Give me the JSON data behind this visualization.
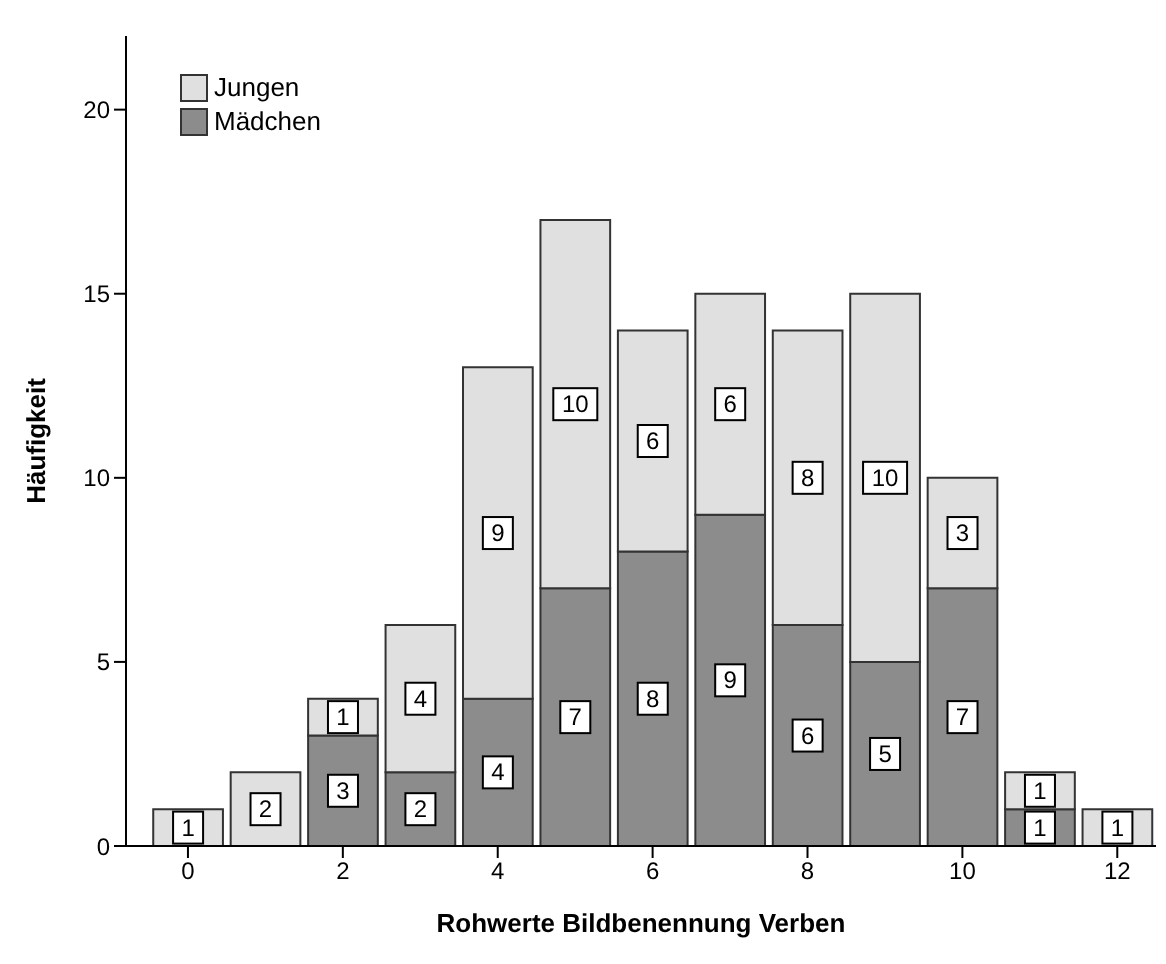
{
  "chart_data": {
    "type": "bar",
    "stacked": true,
    "xlabel": "Rohwerte Bildbenennung Verben",
    "ylabel": "Häufigkeit",
    "x": [
      0,
      1,
      2,
      3,
      4,
      5,
      6,
      7,
      8,
      9,
      10,
      11,
      12
    ],
    "series": [
      {
        "name": "Mädchen",
        "color": "#8c8c8c",
        "values": [
          0,
          0,
          3,
          2,
          4,
          7,
          8,
          9,
          6,
          5,
          7,
          1,
          0
        ],
        "value_labels": [
          null,
          null,
          "3",
          "2",
          "4",
          "7",
          "8",
          "9",
          "6",
          "5",
          "7",
          "1",
          null
        ]
      },
      {
        "name": "Jungen",
        "color": "#e0e0e0",
        "values": [
          1,
          2,
          1,
          4,
          9,
          10,
          6,
          6,
          8,
          10,
          3,
          1,
          1
        ],
        "value_labels": [
          "1",
          "2",
          "1",
          "4",
          "9",
          "10",
          "6",
          "6",
          "8",
          "10",
          "3",
          "1",
          "1"
        ]
      }
    ],
    "xlim": [
      -0.8,
      12.5
    ],
    "xticks": [
      0,
      2,
      4,
      6,
      8,
      10,
      12
    ],
    "ylim": [
      0,
      22
    ],
    "yticks": [
      0,
      5,
      10,
      15,
      20
    ],
    "grid": false,
    "legend": "top left"
  }
}
